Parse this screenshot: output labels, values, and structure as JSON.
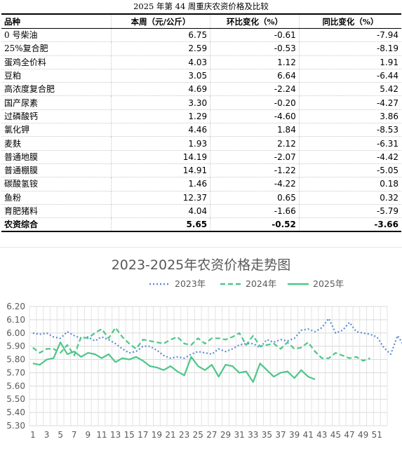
{
  "table": {
    "title": "2025 年第 44 周重庆农资价格及比较",
    "headers": [
      "品种",
      "本周（元/公斤）",
      "环比变化（%）",
      "同比变化（%）"
    ],
    "rows": [
      [
        "0 号柴油",
        "6.75",
        "-0.61",
        "-7.94"
      ],
      [
        "25%复合肥",
        "2.59",
        "-0.53",
        "-8.19"
      ],
      [
        "蛋鸡全价料",
        "4.03",
        "1.12",
        "1.91"
      ],
      [
        "豆粕",
        "3.05",
        "6.64",
        "-6.44"
      ],
      [
        "高浓度复合肥",
        "4.69",
        "-2.24",
        "5.42"
      ],
      [
        "国产尿素",
        "3.30",
        "-0.20",
        "-4.27"
      ],
      [
        "过磷酸钙",
        "1.29",
        "-4.60",
        "3.86"
      ],
      [
        "氯化钾",
        "4.46",
        "1.84",
        "-8.53"
      ],
      [
        "麦麸",
        "1.93",
        "2.12",
        "-6.31"
      ],
      [
        "普通地膜",
        "14.19",
        "-2.07",
        "-4.42"
      ],
      [
        "普通棚膜",
        "14.91",
        "-1.22",
        "-5.05"
      ],
      [
        "碳酸氢铵",
        "1.46",
        "-4.22",
        "0.18"
      ],
      [
        "鱼粉",
        "12.37",
        "0.65",
        "0.32"
      ],
      [
        "育肥猪料",
        "4.04",
        "-1.66",
        "-5.79"
      ]
    ],
    "total": [
      "农资综合",
      "5.65",
      "-0.52",
      "-3.66"
    ]
  },
  "chart_data": {
    "type": "line",
    "title": "2023-2025年农资价格走势图",
    "xlabel": "",
    "ylabel": "",
    "ylim": [
      5.3,
      6.2
    ],
    "yticks": [
      "6.20",
      "6.10",
      "6.00",
      "5.90",
      "5.80",
      "5.70",
      "5.60",
      "5.50",
      "5.40",
      "5.30"
    ],
    "xticks": [
      "1",
      "3",
      "5",
      "7",
      "9",
      "11",
      "13",
      "15",
      "17",
      "19",
      "21",
      "23",
      "25",
      "27",
      "29",
      "31",
      "33",
      "35",
      "37",
      "39",
      "41",
      "43",
      "45",
      "47",
      "49",
      "51"
    ],
    "grid": true,
    "legend_position": "top",
    "colors": {
      "2023年": "#5b8bd6",
      "2024年": "#4ec689",
      "2025年": "#4ec689"
    },
    "series": [
      {
        "name": "2023年",
        "style": "dotted",
        "values": [
          6.0,
          5.99,
          6.0,
          5.97,
          5.96,
          6.01,
          5.98,
          5.96,
          5.97,
          5.94,
          5.97,
          5.95,
          5.92,
          5.88,
          5.85,
          5.86,
          5.9,
          5.9,
          5.87,
          5.83,
          5.81,
          5.82,
          5.81,
          5.84,
          5.86,
          5.85,
          5.84,
          5.88,
          5.86,
          5.88,
          5.91,
          5.92,
          5.92,
          5.89,
          5.95,
          5.93,
          5.95,
          5.94,
          5.96,
          6.02,
          6.03,
          6.01,
          6.04,
          6.11,
          6.0,
          6.02,
          6.08,
          6.01,
          6.0,
          5.99,
          5.97,
          5.89,
          5.84,
          5.98,
          5.9
        ]
      },
      {
        "name": "2024年",
        "style": "dashed",
        "values": [
          5.89,
          5.85,
          5.88,
          5.88,
          5.85,
          5.91,
          5.83,
          5.97,
          5.96,
          6.0,
          6.03,
          5.96,
          6.04,
          5.97,
          5.92,
          5.88,
          5.95,
          5.94,
          5.93,
          5.92,
          5.95,
          5.97,
          5.92,
          5.91,
          5.96,
          5.92,
          5.96,
          5.96,
          5.95,
          5.97,
          6.0,
          5.91,
          5.98,
          5.9,
          5.91,
          5.92,
          5.88,
          5.93,
          5.88,
          5.89,
          5.93,
          5.86,
          5.81,
          5.81,
          5.85,
          5.83,
          5.81,
          5.82,
          5.79,
          5.81
        ]
      },
      {
        "name": "2025年",
        "style": "solid",
        "values": [
          5.77,
          5.76,
          5.8,
          5.81,
          5.93,
          5.84,
          5.86,
          5.82,
          5.85,
          5.84,
          5.81,
          5.84,
          5.78,
          5.81,
          5.8,
          5.82,
          5.79,
          5.75,
          5.74,
          5.72,
          5.75,
          5.71,
          5.68,
          5.82,
          5.75,
          5.72,
          5.76,
          5.67,
          5.76,
          5.75,
          5.7,
          5.71,
          5.63,
          5.77,
          5.72,
          5.67,
          5.7,
          5.71,
          5.66,
          5.72,
          5.67,
          5.65
        ]
      }
    ]
  }
}
